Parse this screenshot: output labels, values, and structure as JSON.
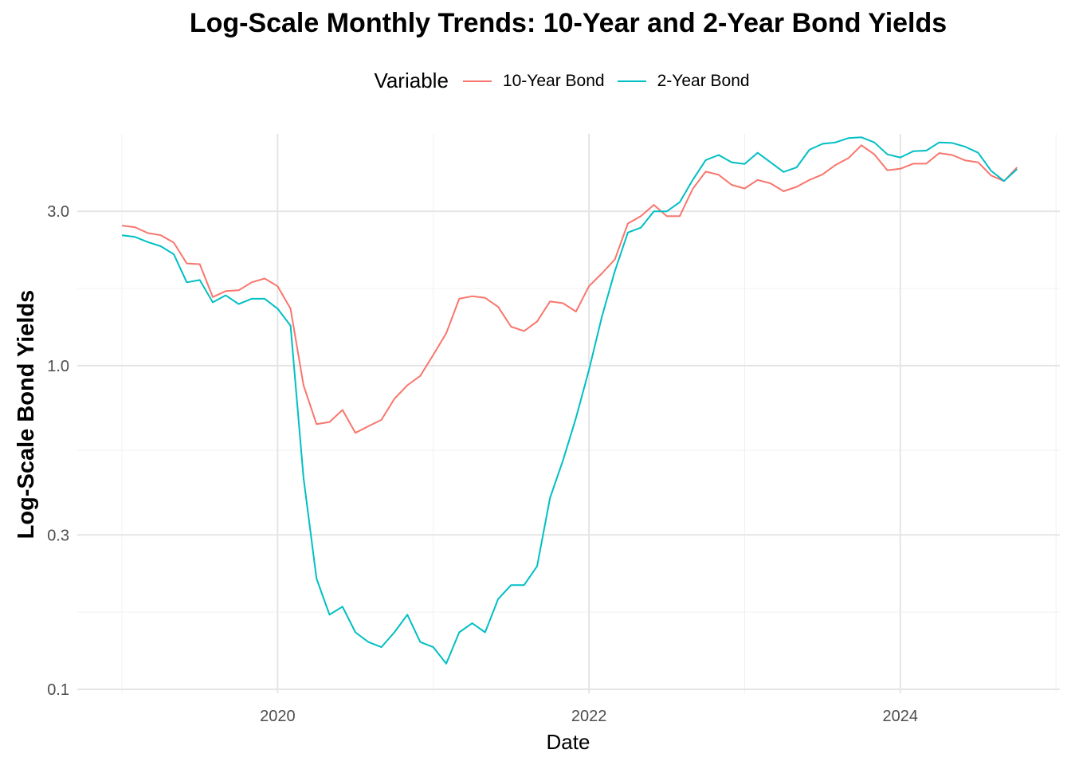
{
  "chart_data": {
    "type": "line",
    "title": "Log-Scale Monthly Trends: 10-Year and 2-Year Bond Yields",
    "xlabel": "Date",
    "ylabel": "Log-Scale Bond Yields",
    "y_scale": "log",
    "ylim": [
      0.1,
      4.7
    ],
    "y_ticks": [
      0.1,
      0.3,
      1.0,
      3.0
    ],
    "y_tick_labels": [
      "0.1",
      "0.3",
      "1.0",
      "3.0"
    ],
    "x_ticks": [
      "2020",
      "2022",
      "2024"
    ],
    "x_start": "2019-01",
    "grid": true,
    "legend": {
      "title": "Variable",
      "placement": "top"
    },
    "series": [
      {
        "name": "10-Year Bond",
        "color": "#F8766D",
        "values": [
          2.71,
          2.68,
          2.57,
          2.53,
          2.4,
          2.07,
          2.06,
          1.63,
          1.7,
          1.71,
          1.81,
          1.86,
          1.76,
          1.5,
          0.87,
          0.66,
          0.67,
          0.73,
          0.62,
          0.65,
          0.68,
          0.79,
          0.87,
          0.93,
          1.08,
          1.26,
          1.61,
          1.64,
          1.62,
          1.52,
          1.32,
          1.28,
          1.37,
          1.58,
          1.56,
          1.47,
          1.76,
          1.93,
          2.13,
          2.75,
          2.9,
          3.14,
          2.9,
          2.9,
          3.52,
          3.98,
          3.89,
          3.62,
          3.53,
          3.75,
          3.66,
          3.46,
          3.57,
          3.75,
          3.9,
          4.17,
          4.38,
          4.8,
          4.5,
          4.02,
          4.06,
          4.21,
          4.21,
          4.54,
          4.48,
          4.31,
          4.25,
          3.87,
          3.72,
          4.1
        ]
      },
      {
        "name": "2-Year Bond",
        "color": "#00BFC4",
        "values": [
          2.53,
          2.5,
          2.41,
          2.34,
          2.21,
          1.81,
          1.84,
          1.57,
          1.65,
          1.55,
          1.61,
          1.61,
          1.5,
          1.33,
          0.45,
          0.22,
          0.17,
          0.18,
          0.15,
          0.14,
          0.135,
          0.15,
          0.17,
          0.14,
          0.135,
          0.12,
          0.15,
          0.16,
          0.15,
          0.19,
          0.21,
          0.21,
          0.24,
          0.39,
          0.51,
          0.69,
          0.97,
          1.42,
          1.96,
          2.58,
          2.67,
          3.0,
          3.0,
          3.2,
          3.75,
          4.32,
          4.48,
          4.25,
          4.2,
          4.55,
          4.25,
          3.97,
          4.1,
          4.65,
          4.85,
          4.9,
          5.05,
          5.08,
          4.9,
          4.5,
          4.4,
          4.6,
          4.62,
          4.9,
          4.88,
          4.75,
          4.55,
          4.0,
          3.72,
          4.05
        ]
      }
    ]
  }
}
